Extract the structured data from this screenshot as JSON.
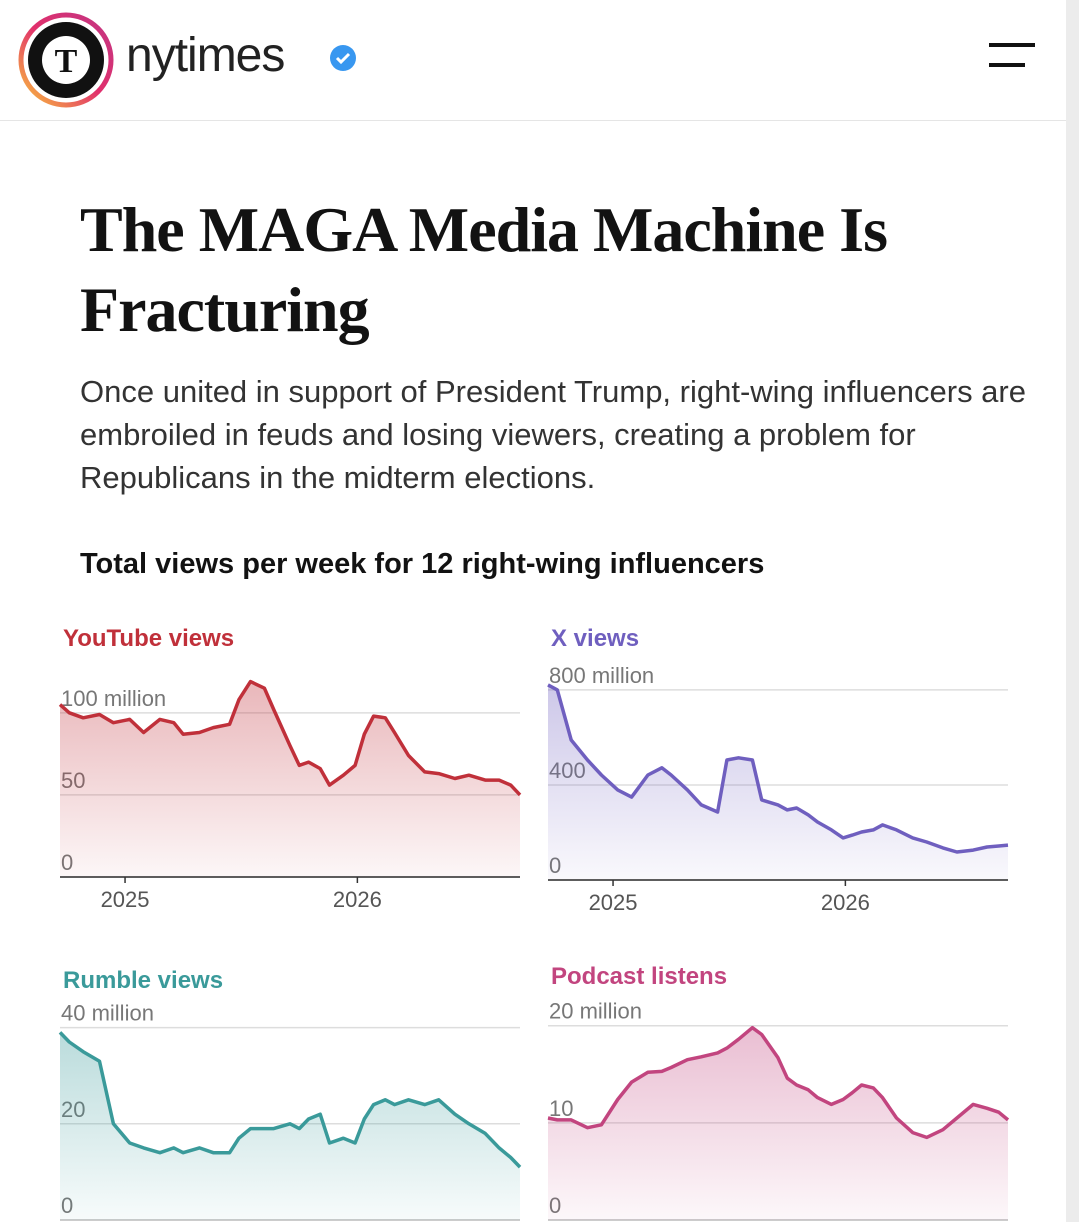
{
  "header": {
    "username": "nytimes"
  },
  "headline": "The MAGA Media Machine Is Fracturing",
  "dek": "Once united in support of President Trump, right-wing influencers are embroiled in feuds and losing viewers, creating a problem for Republicans in the midterm elections.",
  "chart_heading": "Total views per week for 12 right-wing influencers",
  "chart_data": [
    {
      "type": "area",
      "title": "YouTube views",
      "color": "#c0303a",
      "x": [
        2024.72,
        2024.76,
        2024.82,
        2024.89,
        2024.95,
        2025.02,
        2025.08,
        2025.15,
        2025.21,
        2025.25,
        2025.32,
        2025.38,
        2025.45,
        2025.49,
        2025.54,
        2025.6,
        2025.64,
        2025.71,
        2025.75,
        2025.79,
        2025.84,
        2025.88,
        2025.94,
        2025.99,
        2026.03,
        2026.07,
        2026.12,
        2026.16,
        2026.22,
        2026.29,
        2026.35,
        2026.42,
        2026.48,
        2026.55,
        2026.61,
        2026.66,
        2026.7
      ],
      "values": [
        105,
        100,
        97,
        99,
        94,
        96,
        88,
        96,
        94,
        87,
        88,
        91,
        93,
        108,
        119,
        115,
        102,
        80,
        68,
        70,
        66,
        56,
        62,
        68,
        87,
        98,
        97,
        88,
        74,
        64,
        63,
        60,
        62,
        59,
        59,
        56,
        50
      ],
      "xlim": [
        2024.72,
        2026.7
      ],
      "xticks": [
        2025,
        2026
      ],
      "ylim": [
        0,
        120
      ],
      "yticks": [
        0,
        50,
        {
          "value": 100,
          "label": "100 million"
        }
      ],
      "grid": true
    },
    {
      "type": "area",
      "title": "X views",
      "color": "#6f5fbf",
      "x": [
        2024.72,
        2024.76,
        2024.82,
        2024.89,
        2024.95,
        2025.02,
        2025.08,
        2025.15,
        2025.21,
        2025.25,
        2025.32,
        2025.38,
        2025.45,
        2025.49,
        2025.54,
        2025.6,
        2025.64,
        2025.71,
        2025.75,
        2025.79,
        2025.84,
        2025.88,
        2025.94,
        2025.99,
        2026.03,
        2026.07,
        2026.12,
        2026.16,
        2026.22,
        2026.29,
        2026.35,
        2026.42,
        2026.48,
        2026.55,
        2026.61,
        2026.66,
        2026.7
      ],
      "values": [
        821,
        800,
        589,
        505,
        442,
        379,
        349,
        442,
        472,
        442,
        379,
        316,
        286,
        505,
        514,
        505,
        337,
        316,
        295,
        303,
        274,
        244,
        211,
        177,
        189,
        202,
        211,
        232,
        211,
        177,
        160,
        135,
        118,
        126,
        139,
        143,
        147
      ],
      "xlim": [
        2024.72,
        2026.7
      ],
      "xticks": [
        2025,
        2026
      ],
      "ylim": [
        0,
        850
      ],
      "yticks": [
        0,
        400,
        {
          "value": 800,
          "label": "800 million"
        }
      ],
      "grid": true
    },
    {
      "type": "area",
      "title": "Rumble views",
      "color": "#3a9a9a",
      "x": [
        2024.72,
        2024.76,
        2024.82,
        2024.89,
        2024.95,
        2025.02,
        2025.08,
        2025.15,
        2025.21,
        2025.25,
        2025.32,
        2025.38,
        2025.45,
        2025.49,
        2025.54,
        2025.6,
        2025.64,
        2025.71,
        2025.75,
        2025.79,
        2025.84,
        2025.88,
        2025.94,
        2025.99,
        2026.03,
        2026.07,
        2026.12,
        2026.16,
        2026.22,
        2026.29,
        2026.35,
        2026.42,
        2026.48,
        2026.55,
        2026.61,
        2026.66,
        2026.7
      ],
      "values": [
        39,
        37,
        35,
        33,
        20,
        16,
        15,
        14,
        15,
        14,
        15,
        14,
        14,
        17,
        19,
        19,
        19,
        20,
        19,
        21,
        22,
        16,
        17,
        16,
        21,
        24,
        25,
        24,
        25,
        24,
        25,
        22,
        20,
        18,
        15,
        13,
        11
      ],
      "xlim": [
        2024.72,
        2026.7
      ],
      "ylim": [
        0,
        42
      ],
      "yticks": [
        0,
        20,
        {
          "value": 40,
          "label": "40 million"
        }
      ],
      "grid": true
    },
    {
      "type": "area",
      "title": "Podcast listens",
      "color": "#c2457f",
      "x": [
        2024.72,
        2024.76,
        2024.82,
        2024.89,
        2024.95,
        2025.02,
        2025.08,
        2025.15,
        2025.21,
        2025.25,
        2025.32,
        2025.38,
        2025.45,
        2025.49,
        2025.54,
        2025.6,
        2025.64,
        2025.71,
        2025.75,
        2025.79,
        2025.84,
        2025.88,
        2025.94,
        2025.99,
        2026.03,
        2026.07,
        2026.12,
        2026.16,
        2026.22,
        2026.29,
        2026.35,
        2026.42,
        2026.48,
        2026.55,
        2026.61,
        2026.66,
        2026.7
      ],
      "values": [
        10.5,
        10.3,
        10.3,
        9.5,
        9.8,
        12.4,
        14.2,
        15.2,
        15.3,
        15.7,
        16.5,
        16.8,
        17.2,
        17.7,
        18.6,
        19.8,
        19.1,
        16.7,
        14.6,
        13.9,
        13.4,
        12.6,
        11.9,
        12.4,
        13.1,
        13.9,
        13.6,
        12.6,
        10.5,
        9.0,
        8.5,
        9.3,
        10.5,
        11.9,
        11.5,
        11.1,
        10.3
      ],
      "xlim": [
        2024.72,
        2026.7
      ],
      "ylim": [
        0,
        21
      ],
      "yticks": [
        0,
        10,
        {
          "value": 20,
          "label": "20 million"
        }
      ],
      "grid": true
    }
  ]
}
